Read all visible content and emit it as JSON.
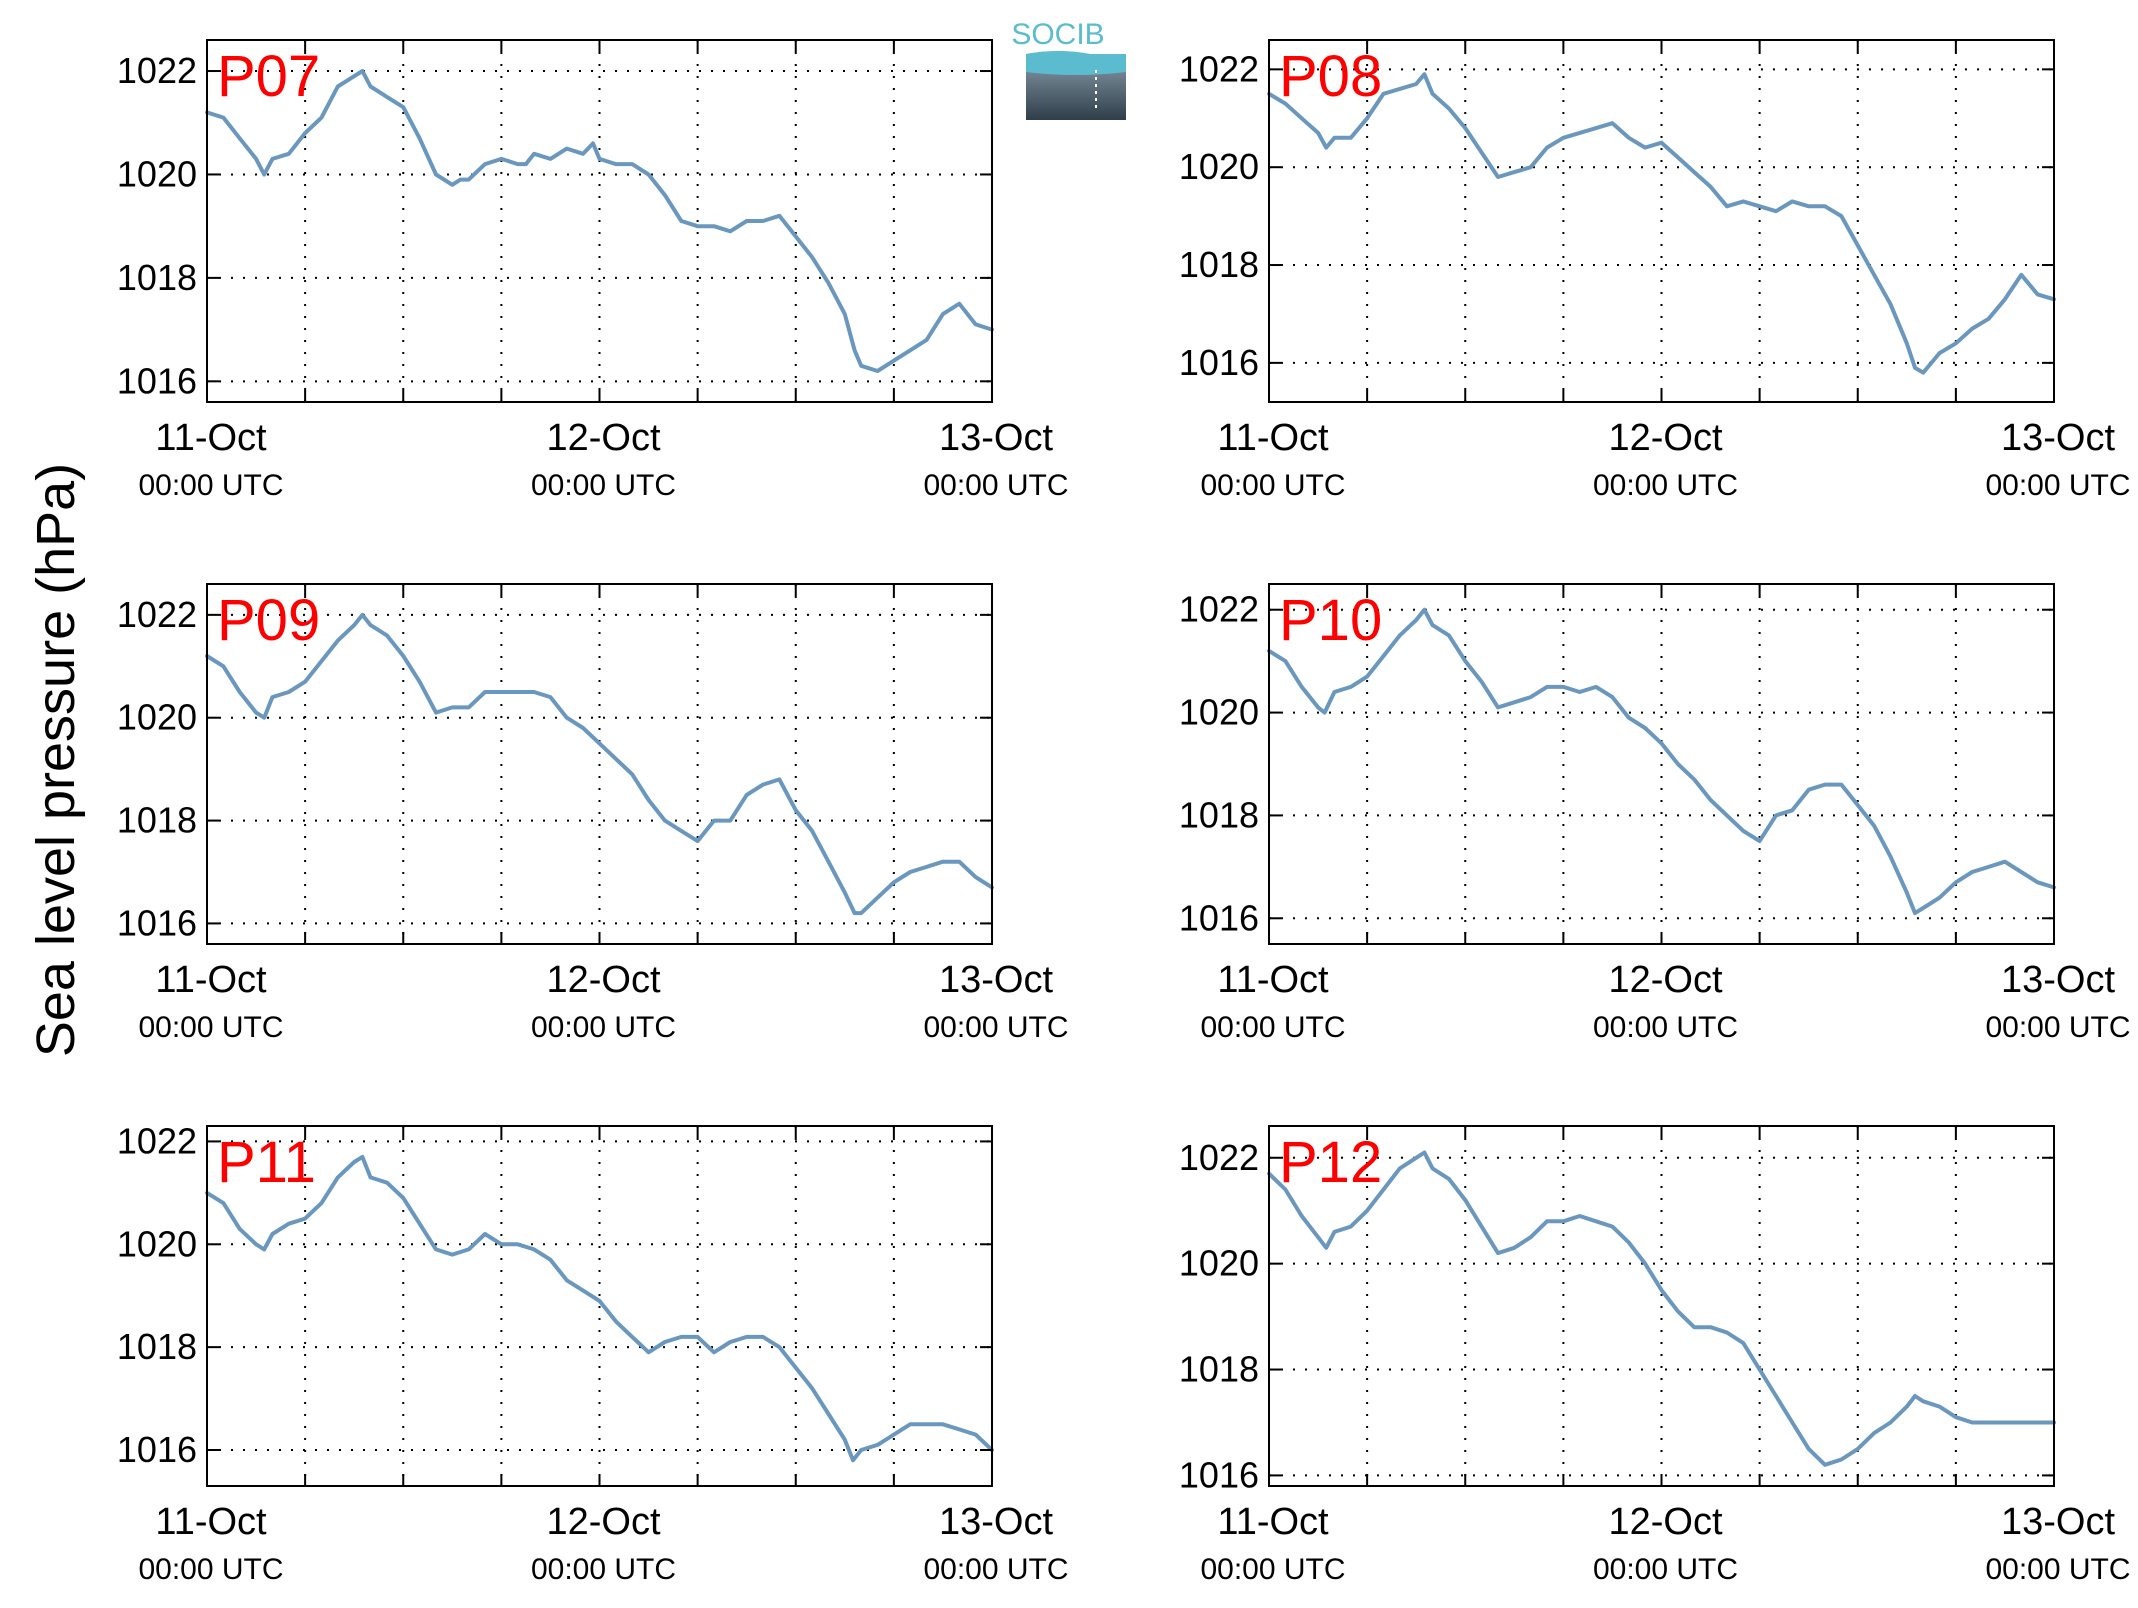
{
  "ylabel": "Sea level pressure (hPa)",
  "logo": {
    "text": "SOCIB"
  },
  "colors": {
    "line": "#6a97bd",
    "panel_label": "#ff0000",
    "axis": "#000000",
    "grid": "#000000"
  },
  "chart_data": [
    {
      "type": "line",
      "panel_label": "P07",
      "ylim": [
        1015.6,
        1022.6
      ],
      "yticks": [
        1016,
        1018,
        1020,
        1022
      ],
      "xlim": [
        0,
        48
      ],
      "xticks_major": [
        0,
        24,
        48
      ],
      "xticks_minor": [
        6,
        12,
        18,
        30,
        36,
        42
      ],
      "xtick_labels": [
        {
          "date": "11-Oct",
          "time": "00:00 UTC"
        },
        {
          "date": "12-Oct",
          "time": "00:00 UTC"
        },
        {
          "date": "13-Oct",
          "time": "00:00 UTC"
        }
      ],
      "grid": true,
      "series": [
        {
          "x": [
            0,
            1,
            2,
            3,
            3.5,
            4,
            5,
            6,
            7,
            8,
            9,
            9.5,
            10,
            11,
            12,
            13,
            14,
            15,
            15.5,
            16,
            17,
            18,
            19,
            19.5,
            20,
            21,
            22,
            23,
            23.6,
            24,
            25,
            26,
            27,
            28,
            29,
            30,
            31,
            32,
            33,
            34,
            35,
            36,
            37,
            38,
            39,
            39.6,
            40,
            41,
            42,
            43,
            44,
            45,
            46,
            47,
            48
          ],
          "y": [
            1021.2,
            1021.1,
            1020.7,
            1020.3,
            1020.0,
            1020.3,
            1020.4,
            1020.8,
            1021.1,
            1021.7,
            1021.9,
            1022.0,
            1021.7,
            1021.5,
            1021.3,
            1020.7,
            1020.0,
            1019.8,
            1019.9,
            1019.9,
            1020.2,
            1020.3,
            1020.2,
            1020.2,
            1020.4,
            1020.3,
            1020.5,
            1020.4,
            1020.6,
            1020.3,
            1020.2,
            1020.2,
            1020.0,
            1019.6,
            1019.1,
            1019.0,
            1019.0,
            1018.9,
            1019.1,
            1019.1,
            1019.2,
            1018.8,
            1018.4,
            1017.9,
            1017.3,
            1016.6,
            1016.3,
            1016.2,
            1016.4,
            1016.6,
            1016.8,
            1017.3,
            1017.5,
            1017.1,
            1017.0
          ]
        }
      ]
    },
    {
      "type": "line",
      "panel_label": "P08",
      "ylim": [
        1015.2,
        1022.6
      ],
      "yticks": [
        1016,
        1018,
        1020,
        1022
      ],
      "xlim": [
        0,
        48
      ],
      "xticks_major": [
        0,
        24,
        48
      ],
      "xticks_minor": [
        6,
        12,
        18,
        30,
        36,
        42
      ],
      "xtick_labels": [
        {
          "date": "11-Oct",
          "time": "00:00 UTC"
        },
        {
          "date": "12-Oct",
          "time": "00:00 UTC"
        },
        {
          "date": "13-Oct",
          "time": "00:00 UTC"
        }
      ],
      "grid": true,
      "series": [
        {
          "x": [
            0,
            1,
            2,
            3,
            3.5,
            4,
            5,
            6,
            7,
            8,
            9,
            9.5,
            10,
            11,
            12,
            13,
            14,
            15,
            16,
            17,
            18,
            19,
            20,
            21,
            22,
            23,
            24,
            25,
            26,
            27,
            28,
            29,
            30,
            31,
            32,
            33,
            34,
            35,
            36,
            37,
            38,
            39,
            39.5,
            40,
            41,
            42,
            43,
            44,
            45,
            46,
            47,
            48
          ],
          "y": [
            1021.5,
            1021.3,
            1021.0,
            1020.7,
            1020.4,
            1020.6,
            1020.6,
            1021.0,
            1021.5,
            1021.6,
            1021.7,
            1021.9,
            1021.5,
            1021.2,
            1020.8,
            1020.3,
            1019.8,
            1019.9,
            1020.0,
            1020.4,
            1020.6,
            1020.7,
            1020.8,
            1020.9,
            1020.6,
            1020.4,
            1020.5,
            1020.2,
            1019.9,
            1019.6,
            1019.2,
            1019.3,
            1019.2,
            1019.1,
            1019.3,
            1019.2,
            1019.2,
            1019.0,
            1018.4,
            1017.8,
            1017.2,
            1016.4,
            1015.9,
            1015.8,
            1016.2,
            1016.4,
            1016.7,
            1016.9,
            1017.3,
            1017.8,
            1017.4,
            1017.3
          ]
        }
      ]
    },
    {
      "type": "line",
      "panel_label": "P09",
      "ylim": [
        1015.6,
        1022.6
      ],
      "yticks": [
        1016,
        1018,
        1020,
        1022
      ],
      "xlim": [
        0,
        48
      ],
      "xticks_major": [
        0,
        24,
        48
      ],
      "xticks_minor": [
        6,
        12,
        18,
        30,
        36,
        42
      ],
      "xtick_labels": [
        {
          "date": "11-Oct",
          "time": "00:00 UTC"
        },
        {
          "date": "12-Oct",
          "time": "00:00 UTC"
        },
        {
          "date": "13-Oct",
          "time": "00:00 UTC"
        }
      ],
      "grid": true,
      "series": [
        {
          "x": [
            0,
            1,
            2,
            3,
            3.5,
            4,
            5,
            6,
            7,
            8,
            9,
            9.5,
            10,
            11,
            12,
            13,
            14,
            15,
            16,
            17,
            18,
            19,
            20,
            21,
            22,
            23,
            24,
            25,
            26,
            27,
            28,
            29,
            30,
            31,
            32,
            33,
            34,
            35,
            36,
            37,
            38,
            39,
            39.6,
            40,
            41,
            42,
            43,
            44,
            45,
            46,
            47,
            48
          ],
          "y": [
            1021.2,
            1021.0,
            1020.5,
            1020.1,
            1020.0,
            1020.4,
            1020.5,
            1020.7,
            1021.1,
            1021.5,
            1021.8,
            1022.0,
            1021.8,
            1021.6,
            1021.2,
            1020.7,
            1020.1,
            1020.2,
            1020.2,
            1020.5,
            1020.5,
            1020.5,
            1020.5,
            1020.4,
            1020.0,
            1019.8,
            1019.5,
            1019.2,
            1018.9,
            1018.4,
            1018.0,
            1017.8,
            1017.6,
            1018.0,
            1018.0,
            1018.5,
            1018.7,
            1018.8,
            1018.2,
            1017.8,
            1017.2,
            1016.6,
            1016.2,
            1016.2,
            1016.5,
            1016.8,
            1017.0,
            1017.1,
            1017.2,
            1017.2,
            1016.9,
            1016.7
          ]
        }
      ]
    },
    {
      "type": "line",
      "panel_label": "P10",
      "ylim": [
        1015.5,
        1022.5
      ],
      "yticks": [
        1016,
        1018,
        1020,
        1022
      ],
      "xlim": [
        0,
        48
      ],
      "xticks_major": [
        0,
        24,
        48
      ],
      "xticks_minor": [
        6,
        12,
        18,
        30,
        36,
        42
      ],
      "xtick_labels": [
        {
          "date": "11-Oct",
          "time": "00:00 UTC"
        },
        {
          "date": "12-Oct",
          "time": "00:00 UTC"
        },
        {
          "date": "13-Oct",
          "time": "00:00 UTC"
        }
      ],
      "grid": true,
      "series": [
        {
          "x": [
            0,
            1,
            2,
            3,
            3.4,
            4,
            5,
            6,
            7,
            8,
            9,
            9.5,
            10,
            11,
            12,
            13,
            14,
            15,
            16,
            17,
            18,
            19,
            20,
            21,
            22,
            23,
            24,
            25,
            26,
            27,
            28,
            29,
            30,
            31,
            32,
            33,
            34,
            35,
            36,
            37,
            38,
            39,
            39.5,
            40,
            41,
            42,
            43,
            44,
            45,
            46,
            47,
            48
          ],
          "y": [
            1021.2,
            1021.0,
            1020.5,
            1020.1,
            1020.0,
            1020.4,
            1020.5,
            1020.7,
            1021.1,
            1021.5,
            1021.8,
            1022.0,
            1021.7,
            1021.5,
            1021.0,
            1020.6,
            1020.1,
            1020.2,
            1020.3,
            1020.5,
            1020.5,
            1020.4,
            1020.5,
            1020.3,
            1019.9,
            1019.7,
            1019.4,
            1019.0,
            1018.7,
            1018.3,
            1018.0,
            1017.7,
            1017.5,
            1018.0,
            1018.1,
            1018.5,
            1018.6,
            1018.6,
            1018.2,
            1017.8,
            1017.2,
            1016.5,
            1016.1,
            1016.2,
            1016.4,
            1016.7,
            1016.9,
            1017.0,
            1017.1,
            1016.9,
            1016.7,
            1016.6
          ]
        }
      ]
    },
    {
      "type": "line",
      "panel_label": "P11",
      "ylim": [
        1015.3,
        1022.3
      ],
      "yticks": [
        1016,
        1018,
        1020,
        1022
      ],
      "xlim": [
        0,
        48
      ],
      "xticks_major": [
        0,
        24,
        48
      ],
      "xticks_minor": [
        6,
        12,
        18,
        30,
        36,
        42
      ],
      "xtick_labels": [
        {
          "date": "11-Oct",
          "time": "00:00 UTC"
        },
        {
          "date": "12-Oct",
          "time": "00:00 UTC"
        },
        {
          "date": "13-Oct",
          "time": "00:00 UTC"
        }
      ],
      "grid": true,
      "series": [
        {
          "x": [
            0,
            1,
            2,
            3,
            3.5,
            4,
            5,
            6,
            7,
            8,
            9,
            9.5,
            10,
            11,
            12,
            13,
            14,
            15,
            16,
            17,
            18,
            19,
            20,
            21,
            22,
            23,
            24,
            25,
            26,
            27,
            28,
            29,
            30,
            31,
            32,
            33,
            34,
            35,
            36,
            37,
            38,
            39,
            39.5,
            40,
            41,
            42,
            43,
            44,
            45,
            46,
            47,
            48
          ],
          "y": [
            1021.0,
            1020.8,
            1020.3,
            1020.0,
            1019.9,
            1020.2,
            1020.4,
            1020.5,
            1020.8,
            1021.3,
            1021.6,
            1021.7,
            1021.3,
            1021.2,
            1020.9,
            1020.4,
            1019.9,
            1019.8,
            1019.9,
            1020.2,
            1020.0,
            1020.0,
            1019.9,
            1019.7,
            1019.3,
            1019.1,
            1018.9,
            1018.5,
            1018.2,
            1017.9,
            1018.1,
            1018.2,
            1018.2,
            1017.9,
            1018.1,
            1018.2,
            1018.2,
            1018.0,
            1017.6,
            1017.2,
            1016.7,
            1016.2,
            1015.8,
            1016.0,
            1016.1,
            1016.3,
            1016.5,
            1016.5,
            1016.5,
            1016.4,
            1016.3,
            1016.0
          ]
        }
      ]
    },
    {
      "type": "line",
      "panel_label": "P12",
      "ylim": [
        1015.8,
        1022.6
      ],
      "yticks": [
        1016,
        1018,
        1020,
        1022
      ],
      "xlim": [
        0,
        48
      ],
      "xticks_major": [
        0,
        24,
        48
      ],
      "xticks_minor": [
        6,
        12,
        18,
        30,
        36,
        42
      ],
      "xtick_labels": [
        {
          "date": "11-Oct",
          "time": "00:00 UTC"
        },
        {
          "date": "12-Oct",
          "time": "00:00 UTC"
        },
        {
          "date": "13-Oct",
          "time": "00:00 UTC"
        }
      ],
      "grid": true,
      "series": [
        {
          "x": [
            0,
            1,
            2,
            3,
            3.5,
            4,
            5,
            6,
            7,
            8,
            9,
            9.5,
            10,
            11,
            12,
            13,
            14,
            15,
            16,
            17,
            18,
            19,
            20,
            21,
            22,
            23,
            24,
            25,
            26,
            27,
            28,
            29,
            30,
            31,
            32,
            33,
            34,
            35,
            36,
            37,
            38,
            39,
            39.5,
            40,
            41,
            42,
            43,
            44,
            45,
            46,
            47,
            48
          ],
          "y": [
            1021.7,
            1021.4,
            1020.9,
            1020.5,
            1020.3,
            1020.6,
            1020.7,
            1021.0,
            1021.4,
            1021.8,
            1022.0,
            1022.1,
            1021.8,
            1021.6,
            1021.2,
            1020.7,
            1020.2,
            1020.3,
            1020.5,
            1020.8,
            1020.8,
            1020.9,
            1020.8,
            1020.7,
            1020.4,
            1020.0,
            1019.5,
            1019.1,
            1018.8,
            1018.8,
            1018.7,
            1018.5,
            1018.0,
            1017.5,
            1017.0,
            1016.5,
            1016.2,
            1016.3,
            1016.5,
            1016.8,
            1017.0,
            1017.3,
            1017.5,
            1017.4,
            1017.3,
            1017.1,
            1017.0,
            1017.0,
            1017.0,
            1017.0,
            1017.0,
            1017.0
          ]
        }
      ]
    }
  ]
}
